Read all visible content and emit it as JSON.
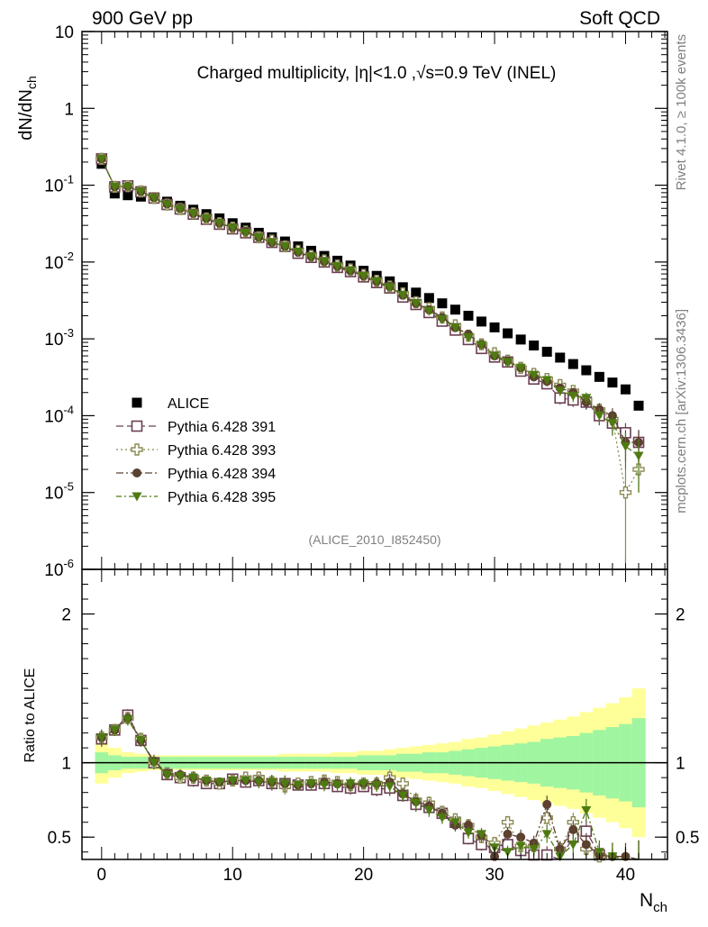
{
  "header": {
    "left": "900 GeV pp",
    "right": "Soft QCD"
  },
  "side_labels": {
    "rivet": "Rivet 4.1.0, ≥ 100k events",
    "mcplots": "mcplots.cern.ch [arXiv:1306.3436]"
  },
  "colors": {
    "alice": "#000000",
    "py391": "#6b3f52",
    "py393": "#8a8a52",
    "py394": "#5c4030",
    "py395": "#4e7a12",
    "band_inner": "#a0f5a0",
    "band_outer": "#ffff99"
  },
  "chart_data": [
    {
      "type": "scatter",
      "panel": "main",
      "title": "Charged multiplicity, |η|<1.0 ,√s=0.9 TeV (INEL)",
      "analysis_label": "(ALICE_2010_I852450)",
      "ylabel": "dN/dN_ch",
      "yscale": "log",
      "ylim": [
        1e-06,
        10
      ],
      "xlim": [
        -1.5,
        43.2
      ],
      "y_tick_labels": [
        "10",
        "1",
        "10^-1",
        "10^-2",
        "10^-3",
        "10^-4",
        "10^-5",
        "10^-6"
      ],
      "legend": [
        "ALICE",
        "Pythia 6.428 391",
        "Pythia 6.428 393",
        "Pythia 6.428 394",
        "Pythia 6.428 395"
      ],
      "series": [
        {
          "name": "ALICE",
          "marker": "square-filled",
          "x": [
            0,
            1,
            2,
            3,
            4,
            5,
            6,
            7,
            8,
            9,
            10,
            11,
            12,
            13,
            14,
            15,
            16,
            17,
            18,
            19,
            20,
            21,
            22,
            23,
            24,
            25,
            26,
            27,
            28,
            29,
            30,
            31,
            32,
            33,
            34,
            35,
            36,
            37,
            38,
            39,
            40,
            41
          ],
          "y": [
            0.19,
            0.078,
            0.074,
            0.071,
            0.068,
            0.061,
            0.054,
            0.048,
            0.042,
            0.037,
            0.032,
            0.028,
            0.024,
            0.021,
            0.0185,
            0.016,
            0.014,
            0.012,
            0.0104,
            0.009,
            0.0077,
            0.0066,
            0.0056,
            0.0047,
            0.004,
            0.0034,
            0.0029,
            0.0024,
            0.002,
            0.00168,
            0.00141,
            0.00118,
            0.00098,
            0.00082,
            0.00068,
            0.00057,
            0.00047,
            0.00039,
            0.00032,
            0.00027,
            0.00022,
            0.000135
          ]
        },
        {
          "name": "Pythia 6.428 391",
          "marker": "square-open",
          "x": [
            0,
            1,
            2,
            3,
            4,
            5,
            6,
            7,
            8,
            9,
            10,
            11,
            12,
            13,
            14,
            15,
            16,
            17,
            18,
            19,
            20,
            21,
            22,
            23,
            24,
            25,
            26,
            27,
            28,
            29,
            30,
            31,
            32,
            33,
            34,
            35,
            36,
            37,
            38,
            39,
            40,
            41
          ],
          "y": [
            0.22,
            0.095,
            0.098,
            0.082,
            0.068,
            0.056,
            0.049,
            0.042,
            0.036,
            0.031,
            0.027,
            0.024,
            0.021,
            0.018,
            0.016,
            0.013,
            0.0115,
            0.01,
            0.0085,
            0.0075,
            0.0064,
            0.0054,
            0.0046,
            0.0035,
            0.0028,
            0.0022,
            0.0017,
            0.0013,
            0.00098,
            0.00075,
            0.00058,
            0.0005,
            0.00038,
            0.0003,
            0.00026,
            0.00017,
            0.00016,
            0.00015,
            0.0001,
            8e-05,
            6e-05,
            4.5e-05
          ],
          "yerr": [
            0.01,
            0.003,
            0.003,
            0.003,
            0.003,
            0.002,
            0.002,
            0.002,
            0.001,
            0.001,
            0.001,
            0.001,
            0.001,
            0.001,
            0.001,
            0.0005,
            0.0005,
            0.0005,
            0.0004,
            0.0004,
            0.0003,
            0.0003,
            0.0003,
            0.0002,
            0.0002,
            0.00015,
            0.00012,
            0.0001,
            8e-05,
            7e-05,
            6e-05,
            5e-05,
            5e-05,
            4e-05,
            4e-05,
            3e-05,
            3e-05,
            3e-05,
            2.5e-05,
            2.5e-05,
            2e-05,
            2e-05
          ],
          "ratio": [
            1.16,
            1.22,
            1.32,
            1.15,
            1.0,
            0.92,
            0.9,
            0.88,
            0.86,
            0.86,
            0.89,
            0.87,
            0.88,
            0.86,
            0.86,
            0.85,
            0.85,
            0.86,
            0.84,
            0.83,
            0.84,
            0.82,
            0.83,
            0.78,
            0.72,
            0.7,
            0.66,
            0.6,
            0.49,
            0.45,
            0.43,
            0.45,
            0.41,
            0.38,
            0.38,
            0.3,
            0.5,
            0.54,
            0.38,
            0.33,
            0.33,
            0.33
          ]
        },
        {
          "name": "Pythia 6.428 393",
          "marker": "cross-open",
          "x": [
            0,
            1,
            2,
            3,
            4,
            5,
            6,
            7,
            8,
            9,
            10,
            11,
            12,
            13,
            14,
            15,
            16,
            17,
            18,
            19,
            20,
            21,
            22,
            23,
            24,
            25,
            26,
            27,
            28,
            29,
            30,
            31,
            32,
            33,
            34,
            35,
            36,
            37,
            38,
            39,
            40,
            41
          ],
          "y": [
            0.22,
            0.095,
            0.097,
            0.083,
            0.068,
            0.056,
            0.049,
            0.043,
            0.037,
            0.032,
            0.028,
            0.025,
            0.021,
            0.019,
            0.016,
            0.014,
            0.012,
            0.0105,
            0.009,
            0.008,
            0.0068,
            0.0057,
            0.0048,
            0.0039,
            0.003,
            0.0025,
            0.0019,
            0.0015,
            0.0011,
            0.00085,
            0.00065,
            0.00052,
            0.00042,
            0.00035,
            0.0003,
            0.00025,
            0.00021,
            0.00016,
            0.00012,
            9e-05,
            1e-05,
            2e-05
          ],
          "yerr": [
            0.01,
            0.003,
            0.003,
            0.003,
            0.003,
            0.002,
            0.002,
            0.002,
            0.001,
            0.001,
            0.001,
            0.001,
            0.001,
            0.001,
            0.001,
            0.0005,
            0.0005,
            0.0005,
            0.0004,
            0.0004,
            0.0003,
            0.0003,
            0.0003,
            0.0002,
            0.0002,
            0.00015,
            0.00012,
            0.0001,
            8e-05,
            7e-05,
            6e-05,
            5e-05,
            5e-05,
            4e-05,
            4e-05,
            3e-05,
            3e-05,
            3e-05,
            2.5e-05,
            2.5e-05,
            1e-05,
            1e-05
          ],
          "ratio": [
            1.17,
            1.22,
            1.3,
            1.16,
            1.0,
            0.93,
            0.9,
            0.9,
            0.88,
            0.86,
            0.88,
            0.9,
            0.9,
            0.87,
            0.84,
            0.86,
            0.87,
            0.88,
            0.87,
            0.85,
            0.86,
            0.86,
            0.9,
            0.86,
            0.75,
            0.73,
            0.67,
            0.62,
            0.58,
            0.5,
            0.46,
            0.6,
            0.44,
            0.44,
            0.63,
            0.42,
            0.6,
            0.42,
            0.37,
            0.33,
            0.33,
            0.33
          ]
        },
        {
          "name": "Pythia 6.428 394",
          "marker": "circle-filled",
          "x": [
            0,
            1,
            2,
            3,
            4,
            5,
            6,
            7,
            8,
            9,
            10,
            11,
            12,
            13,
            14,
            15,
            16,
            17,
            18,
            19,
            20,
            21,
            22,
            23,
            24,
            25,
            26,
            27,
            28,
            29,
            30,
            31,
            32,
            33,
            34,
            35,
            36,
            37,
            38,
            39,
            40,
            41
          ],
          "y": [
            0.22,
            0.095,
            0.097,
            0.083,
            0.069,
            0.057,
            0.05,
            0.043,
            0.037,
            0.032,
            0.028,
            0.025,
            0.021,
            0.018,
            0.016,
            0.0135,
            0.0118,
            0.0102,
            0.0088,
            0.0077,
            0.0066,
            0.0056,
            0.0048,
            0.0037,
            0.0029,
            0.0024,
            0.0019,
            0.0014,
            0.00115,
            0.00085,
            0.0006,
            0.00052,
            0.00042,
            0.00032,
            0.00028,
            0.00023,
            0.0002,
            0.00015,
            0.00012,
            0.0001,
            4.5e-05,
            4.5e-05
          ],
          "yerr": [
            0.01,
            0.003,
            0.003,
            0.003,
            0.003,
            0.002,
            0.002,
            0.002,
            0.001,
            0.001,
            0.001,
            0.001,
            0.001,
            0.001,
            0.001,
            0.0005,
            0.0005,
            0.0005,
            0.0004,
            0.0004,
            0.0003,
            0.0003,
            0.0003,
            0.0002,
            0.0002,
            0.00015,
            0.00012,
            0.0001,
            8e-05,
            7e-05,
            6e-05,
            5e-05,
            5e-05,
            4e-05,
            4e-05,
            3e-05,
            3e-05,
            3e-05,
            2.5e-05,
            2.5e-05,
            2e-05,
            2e-05
          ],
          "ratio": [
            1.17,
            1.22,
            1.3,
            1.15,
            1.01,
            0.93,
            0.92,
            0.9,
            0.88,
            0.87,
            0.88,
            0.88,
            0.88,
            0.87,
            0.86,
            0.85,
            0.86,
            0.87,
            0.86,
            0.85,
            0.86,
            0.86,
            0.87,
            0.79,
            0.74,
            0.71,
            0.66,
            0.58,
            0.58,
            0.51,
            0.37,
            0.52,
            0.5,
            0.46,
            0.72,
            0.42,
            0.55,
            0.45,
            0.38,
            0.37,
            0.37,
            0.33
          ]
        },
        {
          "name": "Pythia 6.428 395",
          "marker": "triangle-down-filled",
          "x": [
            0,
            1,
            2,
            3,
            4,
            5,
            6,
            7,
            8,
            9,
            10,
            11,
            12,
            13,
            14,
            15,
            16,
            17,
            18,
            19,
            20,
            21,
            22,
            23,
            24,
            25,
            26,
            27,
            28,
            29,
            30,
            31,
            32,
            33,
            34,
            35,
            36,
            37,
            38,
            39,
            40,
            41
          ],
          "y": [
            0.22,
            0.095,
            0.096,
            0.082,
            0.068,
            0.056,
            0.049,
            0.043,
            0.037,
            0.032,
            0.028,
            0.024,
            0.021,
            0.018,
            0.016,
            0.0135,
            0.0118,
            0.0102,
            0.0088,
            0.0077,
            0.0066,
            0.0056,
            0.0047,
            0.0037,
            0.0029,
            0.0023,
            0.0018,
            0.0014,
            0.00105,
            0.00083,
            0.0006,
            0.0005,
            0.00042,
            0.00034,
            0.00029,
            0.00021,
            0.00018,
            0.00017,
            0.0001,
            8e-05,
            4e-05,
            3e-05
          ],
          "yerr": [
            0.01,
            0.003,
            0.003,
            0.003,
            0.003,
            0.002,
            0.002,
            0.002,
            0.001,
            0.001,
            0.001,
            0.001,
            0.001,
            0.001,
            0.001,
            0.0005,
            0.0005,
            0.0005,
            0.0004,
            0.0004,
            0.0003,
            0.0003,
            0.0003,
            0.0002,
            0.0002,
            0.00015,
            0.00012,
            0.0001,
            8e-05,
            7e-05,
            6e-05,
            5e-05,
            5e-05,
            4e-05,
            4e-05,
            3e-05,
            3e-05,
            3e-05,
            2.5e-05,
            2.5e-05,
            2e-05,
            2e-05
          ],
          "ratio": [
            1.17,
            1.22,
            1.29,
            1.15,
            1.0,
            0.92,
            0.91,
            0.9,
            0.88,
            0.87,
            0.88,
            0.88,
            0.87,
            0.87,
            0.86,
            0.85,
            0.86,
            0.85,
            0.85,
            0.86,
            0.86,
            0.85,
            0.84,
            0.78,
            0.73,
            0.68,
            0.63,
            0.6,
            0.53,
            0.52,
            0.43,
            0.4,
            0.44,
            0.42,
            0.52,
            0.37,
            0.45,
            0.68,
            0.4,
            0.37,
            0.33,
            0.33
          ]
        }
      ]
    },
    {
      "type": "area",
      "panel": "ratio",
      "ylabel": "Ratio to ALICE",
      "xlabel": "N_ch",
      "ylim": [
        0.35,
        2.3
      ],
      "xlim": [
        -1.5,
        43.2
      ],
      "x_tick_labels": [
        "0",
        "10",
        "20",
        "30",
        "40"
      ],
      "y_tick_labels": [
        "0.5",
        "1",
        "2"
      ],
      "reference_line": 1,
      "band_x": [
        0,
        1,
        2,
        3,
        4,
        5,
        6,
        7,
        8,
        9,
        10,
        11,
        12,
        13,
        14,
        15,
        16,
        17,
        18,
        19,
        20,
        21,
        22,
        23,
        24,
        25,
        26,
        27,
        28,
        29,
        30,
        31,
        32,
        33,
        34,
        35,
        36,
        37,
        38,
        39,
        40,
        41
      ],
      "stat_band": [
        0.07,
        0.05,
        0.04,
        0.04,
        0.04,
        0.04,
        0.04,
        0.04,
        0.04,
        0.04,
        0.04,
        0.04,
        0.04,
        0.04,
        0.04,
        0.04,
        0.04,
        0.04,
        0.04,
        0.04,
        0.05,
        0.05,
        0.05,
        0.06,
        0.06,
        0.07,
        0.07,
        0.08,
        0.09,
        0.1,
        0.11,
        0.12,
        0.13,
        0.14,
        0.16,
        0.17,
        0.18,
        0.2,
        0.22,
        0.24,
        0.26,
        0.3
      ],
      "total_band": [
        0.14,
        0.1,
        0.07,
        0.06,
        0.05,
        0.05,
        0.05,
        0.05,
        0.05,
        0.05,
        0.05,
        0.05,
        0.05,
        0.05,
        0.06,
        0.06,
        0.06,
        0.06,
        0.07,
        0.07,
        0.08,
        0.08,
        0.09,
        0.1,
        0.11,
        0.12,
        0.13,
        0.14,
        0.16,
        0.17,
        0.19,
        0.21,
        0.23,
        0.25,
        0.27,
        0.29,
        0.31,
        0.34,
        0.37,
        0.4,
        0.44,
        0.5
      ]
    }
  ]
}
